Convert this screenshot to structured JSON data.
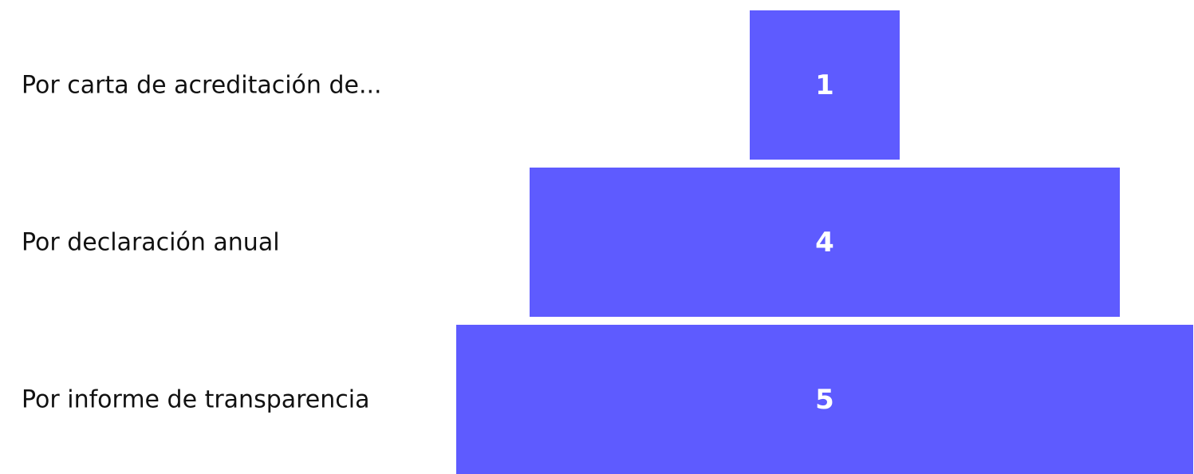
{
  "chart_data": {
    "type": "bar",
    "orientation": "horizontal-centered",
    "categories": [
      "Por carta de acreditación de...",
      "Por declaración anual",
      "Por informe de transparencia"
    ],
    "values": [
      1,
      4,
      5
    ],
    "data_labels": [
      "1",
      "4",
      "5"
    ],
    "bar_color": "#5E5BFF",
    "label_color": "#111111",
    "value_color": "#FFFFFF",
    "grid": false,
    "legend": "none"
  }
}
